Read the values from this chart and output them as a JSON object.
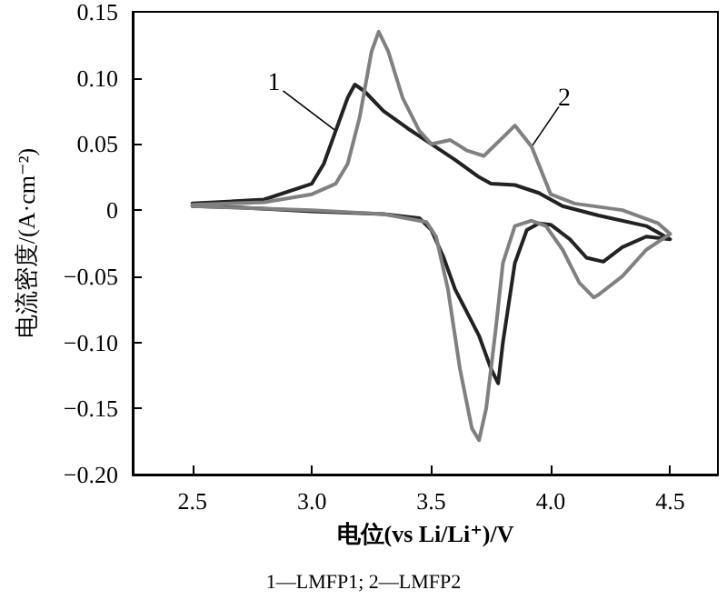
{
  "chart_data": {
    "type": "line",
    "xlabel": "电位(vs Li/Li⁺)/V",
    "ylabel": "电流密度/(A·cm⁻²)",
    "xlim": [
      2.25,
      4.7
    ],
    "ylim": [
      -0.2,
      0.15
    ],
    "xticks": [
      2.5,
      {
        "value": 3,
        "label": "3.0"
      },
      3.5,
      {
        "value": 4,
        "label": "4.0"
      },
      4.5
    ],
    "yticks": [
      {
        "value": -0.2,
        "label": "−0.20"
      },
      {
        "value": -0.15,
        "label": "−0.15"
      },
      {
        "value": -0.1,
        "label": "−0.10"
      },
      {
        "value": -0.05,
        "label": "−0.05"
      },
      0,
      {
        "value": 0.05,
        "label": "0.05"
      },
      {
        "value": 0.1,
        "label": "0.10"
      },
      {
        "value": 0.15,
        "label": "0.15"
      }
    ],
    "grid": false,
    "marker": "none",
    "line_style": "solid",
    "series": [
      {
        "name": "1",
        "color": "#222222",
        "x": [
          2.5,
          2.8,
          3.0,
          3.05,
          3.1,
          3.15,
          3.18,
          3.22,
          3.3,
          3.4,
          3.5,
          3.6,
          3.7,
          3.75,
          3.85,
          3.95,
          4.05,
          4.2,
          4.4,
          4.5,
          4.4,
          4.3,
          4.22,
          4.15,
          4.08,
          4.0,
          3.95,
          3.9,
          3.85,
          3.8,
          3.78,
          3.75,
          3.7,
          3.6,
          3.55,
          3.5,
          3.45,
          3.3,
          3.0,
          2.7,
          2.5
        ],
        "values": [
          0.005,
          0.008,
          0.02,
          0.035,
          0.06,
          0.085,
          0.095,
          0.09,
          0.075,
          0.062,
          0.05,
          0.038,
          0.025,
          0.02,
          0.019,
          0.013,
          0.003,
          -0.004,
          -0.012,
          -0.022,
          -0.02,
          -0.028,
          -0.039,
          -0.036,
          -0.022,
          -0.011,
          -0.01,
          -0.015,
          -0.04,
          -0.1,
          -0.131,
          -0.12,
          -0.095,
          -0.06,
          -0.035,
          -0.015,
          -0.006,
          -0.003,
          -0.001,
          0.002,
          0.003
        ]
      },
      {
        "name": "2",
        "color": "#808080",
        "x": [
          2.5,
          2.8,
          3.0,
          3.1,
          3.15,
          3.2,
          3.25,
          3.28,
          3.32,
          3.38,
          3.45,
          3.5,
          3.58,
          3.65,
          3.72,
          3.8,
          3.85,
          3.92,
          4.0,
          4.1,
          4.3,
          4.45,
          4.5,
          4.4,
          4.3,
          4.2,
          4.18,
          4.12,
          4.05,
          3.98,
          3.92,
          3.85,
          3.8,
          3.77,
          3.73,
          3.7,
          3.67,
          3.62,
          3.57,
          3.52,
          3.48,
          3.3,
          3.0,
          2.5
        ],
        "values": [
          0.004,
          0.006,
          0.012,
          0.02,
          0.035,
          0.07,
          0.12,
          0.135,
          0.12,
          0.085,
          0.06,
          0.05,
          0.053,
          0.045,
          0.041,
          0.055,
          0.064,
          0.048,
          0.012,
          0.005,
          0,
          -0.01,
          -0.018,
          -0.03,
          -0.05,
          -0.064,
          -0.066,
          -0.055,
          -0.03,
          -0.012,
          -0.008,
          -0.012,
          -0.04,
          -0.09,
          -0.15,
          -0.174,
          -0.165,
          -0.12,
          -0.06,
          -0.02,
          -0.009,
          -0.003,
          0,
          0.003
        ]
      }
    ],
    "annotations": [
      "1—LMFP1; 2—LMFP2"
    ]
  }
}
